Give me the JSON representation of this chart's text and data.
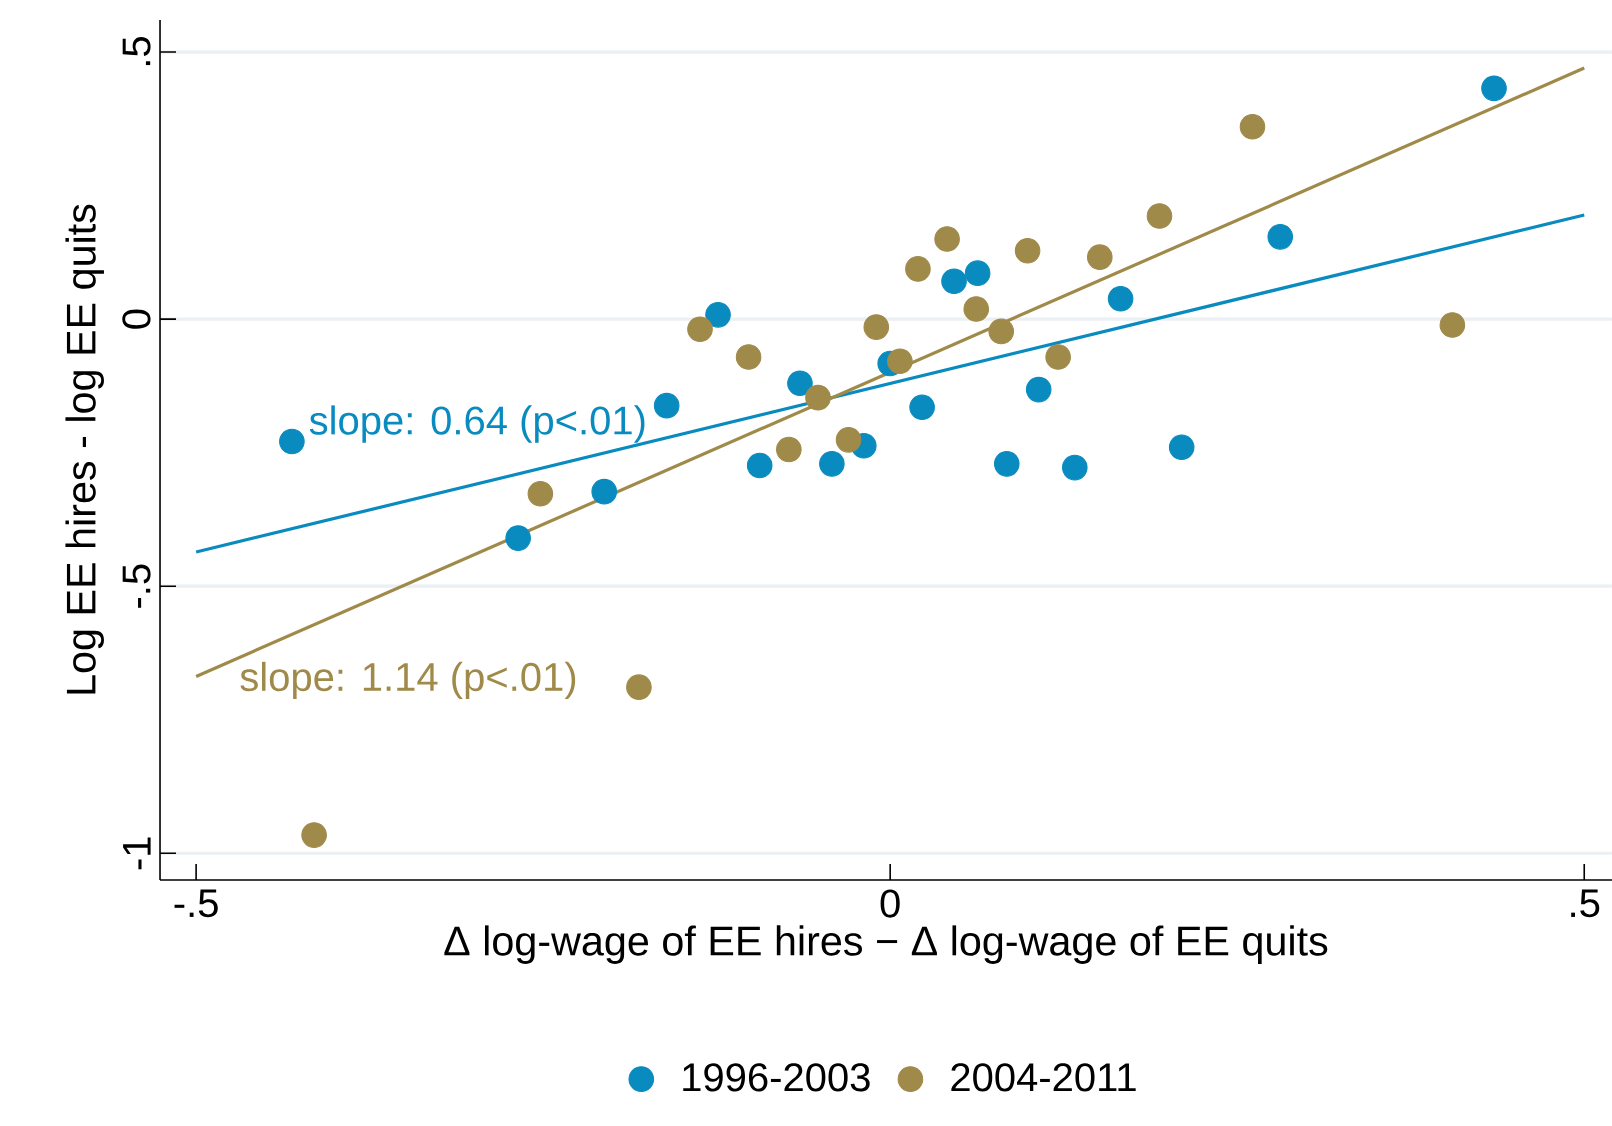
{
  "chart_data": {
    "type": "scatter",
    "xlabel": "Δ log-wage of EE hires − Δ log-wage of EE quits",
    "ylabel": "Log EE hires - log EE quits",
    "xlim": [
      -0.526,
      0.52
    ],
    "ylim": [
      -1.05,
      0.56
    ],
    "xticks": [
      {
        "value": -0.5,
        "label": "-.5"
      },
      0,
      {
        "value": 0.5,
        "label": ".5"
      }
    ],
    "yticks": [
      {
        "value": -1,
        "label": "-1"
      },
      {
        "value": -0.5,
        "label": "-.5"
      },
      0,
      {
        "value": 0.5,
        "label": ".5"
      }
    ],
    "grid": "y",
    "legend": "bottom",
    "series": [
      {
        "name": "1996-2003",
        "color": "#0a8bbf",
        "x": [
          -0.431,
          -0.124,
          -0.161,
          -0.065,
          -0.094,
          -0.042,
          -0.019,
          -0.206,
          -0.268,
          0.0,
          0.023,
          0.046,
          0.063,
          0.166,
          0.107,
          0.084,
          0.133,
          0.21,
          0.281,
          0.435
        ],
        "values": [
          -0.229,
          0.008,
          -0.162,
          -0.12,
          -0.274,
          -0.271,
          -0.237,
          -0.323,
          -0.41,
          -0.083,
          -0.165,
          0.071,
          0.086,
          0.038,
          -0.132,
          -0.271,
          -0.278,
          -0.24,
          0.154,
          0.432
        ]
      },
      {
        "name": "2004-2011",
        "color": "#a08a4a",
        "x": [
          -0.137,
          -0.102,
          -0.052,
          -0.073,
          -0.03,
          -0.252,
          -0.01,
          0.007,
          0.02,
          0.041,
          0.062,
          0.08,
          0.099,
          0.121,
          0.151,
          0.194,
          0.261,
          0.405,
          -0.181,
          -0.415
        ],
        "values": [
          -0.019,
          -0.071,
          -0.147,
          -0.244,
          -0.226,
          -0.327,
          -0.015,
          -0.079,
          0.094,
          0.15,
          0.019,
          -0.023,
          0.128,
          -0.071,
          0.116,
          0.193,
          0.36,
          -0.011,
          -0.689,
          -0.966
        ]
      },
      {
        "type": "line",
        "color": "#0a8bbf",
        "x": [
          -0.5,
          0.5
        ],
        "values": [
          -0.436,
          0.195
        ]
      },
      {
        "type": "line",
        "color": "#a08a4a",
        "x": [
          -0.5,
          0.5
        ],
        "values": [
          -0.669,
          0.47
        ]
      }
    ],
    "annotations": [
      "slope: 0.64 (p<.01)",
      "slope: 1.14 (p<.01)"
    ]
  }
}
